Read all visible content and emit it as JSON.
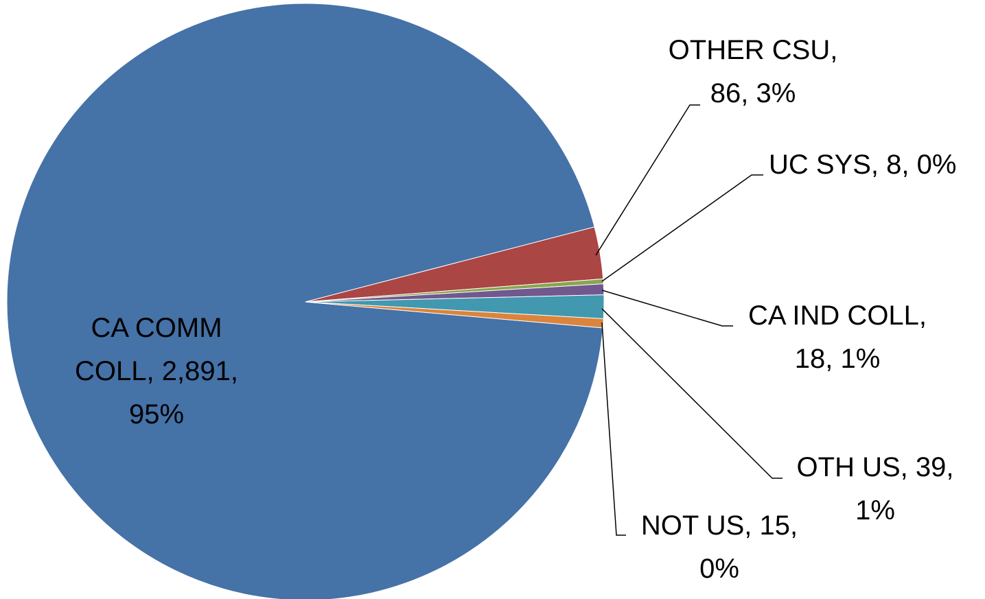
{
  "chart_data": {
    "type": "pie",
    "categories": [
      "CA COMM COLL",
      "OTHER CSU",
      "UC SYS",
      "CA IND COLL",
      "OTH US",
      "NOT US"
    ],
    "values": [
      2891,
      86,
      8,
      18,
      39,
      15
    ],
    "value_labels": [
      "CA COMM COLL, 2,891, 95%",
      "OTHER CSU, 86, 3%",
      "UC SYS, 8, 0%",
      "CA IND COLL, 18, 1%",
      "OTH US, 39, 1%",
      "NOT US, 15, 0%"
    ],
    "colors": [
      "#4572a7",
      "#aa4643",
      "#89a54e",
      "#71588f",
      "#4198af",
      "#db843d"
    ]
  }
}
